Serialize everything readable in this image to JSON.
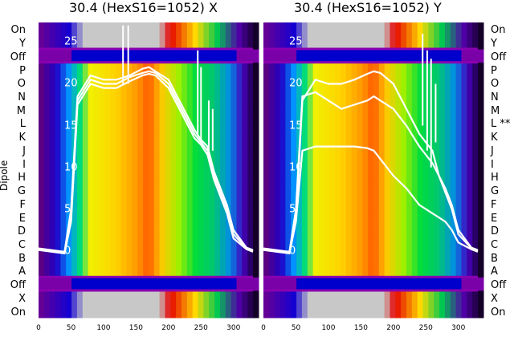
{
  "chart_data": [
    {
      "type": "heatmap",
      "title": "30.4 (HexS16=1052) X",
      "ylabel": "Dipole",
      "x_ticks": [
        0,
        50,
        100,
        150,
        200,
        250,
        300
      ],
      "xlim": [
        0,
        330
      ],
      "left_row_labels": [
        "On",
        "Y",
        "Off",
        "P",
        "O",
        "N",
        "M",
        "L",
        "K",
        "J",
        "I",
        "H",
        "G",
        "F",
        "E",
        "D",
        "C",
        "B",
        "A",
        "Off",
        "X",
        "On"
      ],
      "overlay_y_ticks": [
        25,
        20,
        15,
        10,
        5,
        0
      ],
      "overlay_ylim": [
        -3,
        26
      ],
      "series": [
        {
          "x": [
            0,
            20,
            40,
            50,
            60,
            80,
            100,
            120,
            140,
            160,
            170,
            180,
            200,
            220,
            240,
            250,
            260,
            270,
            280,
            290,
            300,
            320,
            330
          ],
          "y": [
            0.2,
            0,
            -0.2,
            4,
            18,
            20.5,
            20,
            20,
            20.8,
            21.3,
            21.5,
            21.3,
            20,
            17,
            14,
            13,
            12,
            9,
            7,
            5,
            2,
            0.3,
            0
          ]
        },
        {
          "x": [
            0,
            20,
            40,
            50,
            60,
            80,
            100,
            120,
            140,
            160,
            170,
            180,
            200,
            220,
            240,
            250,
            260,
            270,
            280,
            290,
            300,
            320,
            330
          ],
          "y": [
            0.3,
            0.1,
            -0.1,
            5,
            18.5,
            21,
            20.5,
            20.5,
            21,
            21.8,
            22,
            21.5,
            20.5,
            17.5,
            14.5,
            13.3,
            12.5,
            9.5,
            7.5,
            5.5,
            2.5,
            0.4,
            0.1
          ]
        },
        {
          "x": [
            0,
            20,
            40,
            50,
            60,
            80,
            100,
            120,
            140,
            160,
            170,
            180,
            200,
            220,
            240,
            250,
            260,
            270,
            280,
            290,
            300,
            320,
            330
          ],
          "y": [
            0.1,
            -0.1,
            -0.3,
            3.5,
            17.5,
            20,
            19.5,
            19.5,
            20.3,
            21,
            21.2,
            21,
            19.5,
            16.5,
            13.5,
            12.7,
            11.5,
            8.5,
            6.5,
            4.5,
            1.5,
            0.2,
            -0.1
          ]
        }
      ],
      "spikes": [
        {
          "x": 130,
          "y": [
            20,
            27
          ]
        },
        {
          "x": 138,
          "y": [
            20,
            27
          ]
        },
        {
          "x": 245,
          "y": [
            14,
            24
          ]
        },
        {
          "x": 250,
          "y": [
            13,
            22
          ]
        },
        {
          "x": 262,
          "y": [
            12,
            18
          ]
        },
        {
          "x": 268,
          "y": [
            12,
            17
          ]
        }
      ]
    },
    {
      "type": "heatmap",
      "title": "30.4 (HexS16=1052) Y",
      "x_ticks": [
        0,
        50,
        100,
        150,
        200,
        250,
        300
      ],
      "xlim": [
        0,
        330
      ],
      "right_row_labels": [
        "On",
        "Y",
        "Off",
        "P",
        "O",
        "N",
        "M",
        "L **",
        "K",
        "J",
        "I",
        "H",
        "G",
        "F",
        "E",
        "D",
        "C",
        "B",
        "A",
        "Off",
        "X",
        "On"
      ],
      "overlay_y_ticks": [
        25,
        20,
        15,
        10,
        5,
        0
      ],
      "overlay_ylim": [
        -3,
        26
      ],
      "series": [
        {
          "x": [
            0,
            20,
            40,
            50,
            60,
            80,
            100,
            120,
            140,
            160,
            170,
            180,
            200,
            220,
            240,
            250,
            260,
            270,
            280,
            290,
            300,
            320,
            330
          ],
          "y": [
            0.2,
            0,
            -0.2,
            4,
            18,
            20.5,
            20,
            20,
            20.5,
            21.2,
            21.5,
            21.3,
            20,
            17,
            14,
            13,
            12,
            9,
            7,
            5,
            2,
            0.3,
            0
          ]
        },
        {
          "x": [
            0,
            20,
            40,
            50,
            60,
            80,
            100,
            120,
            140,
            160,
            170,
            180,
            200,
            220,
            240,
            250,
            260,
            270,
            280,
            290,
            300,
            320,
            330
          ],
          "y": [
            0.3,
            0.1,
            -0.1,
            5,
            18.5,
            19,
            18,
            17,
            17.5,
            18,
            18.5,
            18,
            17,
            15,
            12.5,
            11.5,
            10.5,
            9,
            7.5,
            5.5,
            2.5,
            0.4,
            0.1
          ]
        },
        {
          "x": [
            0,
            20,
            40,
            50,
            60,
            80,
            100,
            120,
            140,
            160,
            170,
            180,
            200,
            220,
            240,
            250,
            260,
            270,
            280,
            290,
            300,
            320,
            330
          ],
          "y": [
            0.1,
            -0.1,
            -0.3,
            3.5,
            12,
            12.5,
            12.5,
            12.5,
            12.5,
            12.3,
            12,
            11,
            9,
            7.5,
            5.5,
            5,
            4.5,
            4,
            3.5,
            2.5,
            1,
            0.2,
            -0.1
          ]
        }
      ],
      "spikes": [
        {
          "x": 245,
          "y": [
            15,
            26
          ]
        },
        {
          "x": 252,
          "y": [
            12,
            24
          ]
        },
        {
          "x": 258,
          "y": [
            10,
            23
          ]
        },
        {
          "x": 265,
          "y": [
            13,
            20
          ]
        }
      ]
    }
  ]
}
